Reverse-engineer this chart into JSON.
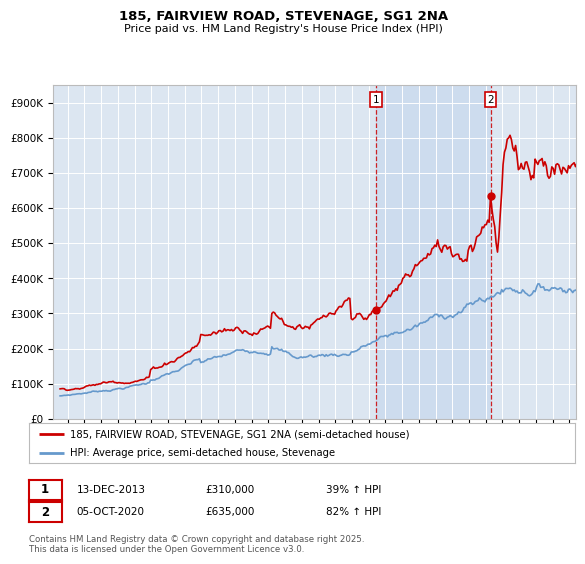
{
  "title1": "185, FAIRVIEW ROAD, STEVENAGE, SG1 2NA",
  "title2": "Price paid vs. HM Land Registry's House Price Index (HPI)",
  "background_color": "#ffffff",
  "plot_bg_color": "#dce6f1",
  "shade_color": "#c8d8ee",
  "grid_color": "#ffffff",
  "red_line_color": "#cc0000",
  "blue_line_color": "#6699cc",
  "vline_color": "#cc0000",
  "legend_red": "185, FAIRVIEW ROAD, STEVENAGE, SG1 2NA (semi-detached house)",
  "legend_blue": "HPI: Average price, semi-detached house, Stevenage",
  "footer": "Contains HM Land Registry data © Crown copyright and database right 2025.\nThis data is licensed under the Open Government Licence v3.0.",
  "ylim": [
    0,
    950000
  ],
  "yticks": [
    0,
    100000,
    200000,
    300000,
    400000,
    500000,
    600000,
    700000,
    800000,
    900000
  ],
  "ytick_labels": [
    "£0",
    "£100K",
    "£200K",
    "£300K",
    "£400K",
    "£500K",
    "£600K",
    "£700K",
    "£800K",
    "£900K"
  ],
  "sale1_year": 2013,
  "sale1_month": 12,
  "sale1_price": 310000,
  "sale2_year": 2020,
  "sale2_month": 10,
  "sale2_price": 635000
}
